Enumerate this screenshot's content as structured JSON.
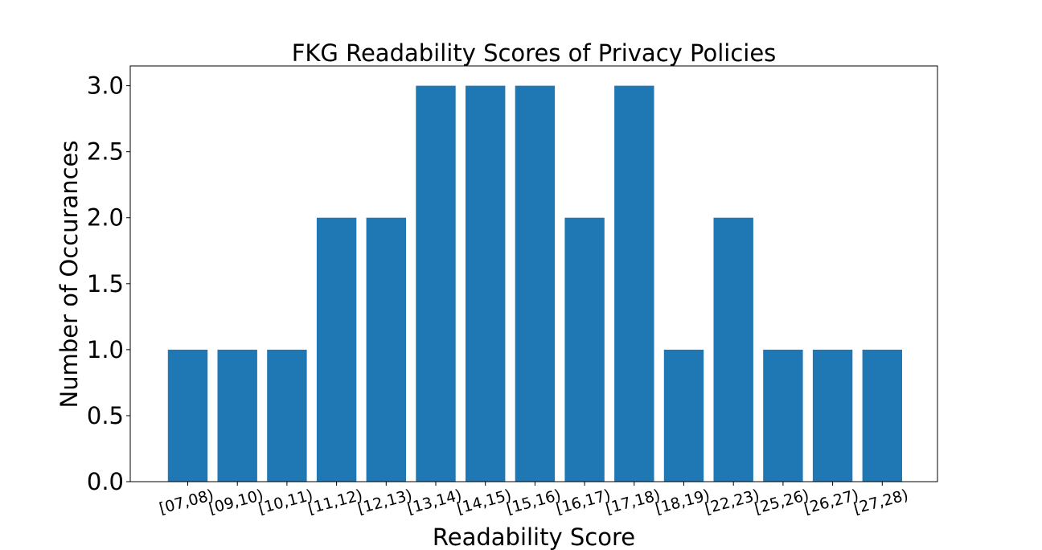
{
  "chart_data": {
    "type": "bar",
    "title": "FKG Readability Scores of Privacy Policies",
    "xlabel": "Readability Score",
    "ylabel": "Number of Occurances",
    "categories": [
      "[07,08)",
      "[09,10)",
      "[10,11)",
      "[11,12)",
      "[12,13)",
      "[13,14)",
      "[14,15)",
      "[15,16)",
      "[16,17)",
      "[17,18)",
      "[18,19)",
      "[22,23)",
      "[25,26)",
      "[26,27)",
      "[27,28)"
    ],
    "values": [
      1,
      1,
      1,
      2,
      2,
      3,
      3,
      3,
      2,
      3,
      1,
      2,
      1,
      1,
      1
    ],
    "ylim": [
      0,
      3.15
    ],
    "yticks": [
      "0.0",
      "0.5",
      "1.0",
      "1.5",
      "2.0",
      "2.5",
      "3.0"
    ],
    "grid": false,
    "bar_color": "#1f77b4"
  }
}
